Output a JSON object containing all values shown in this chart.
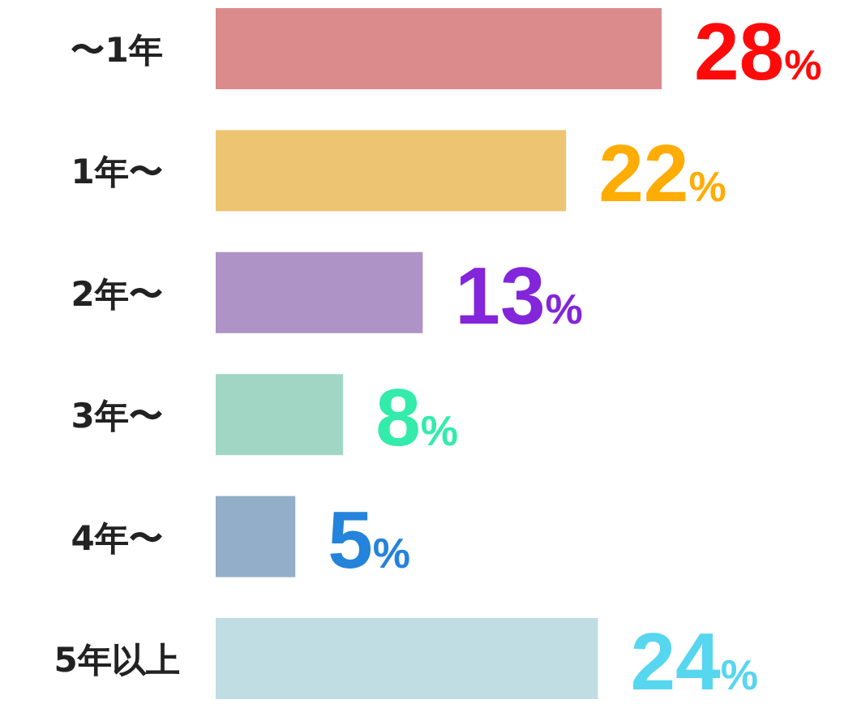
{
  "chart_data": {
    "type": "bar",
    "orientation": "horizontal",
    "categories": [
      "〜1年",
      "1年〜",
      "2年〜",
      "3年〜",
      "4年〜",
      "5年以上"
    ],
    "values": [
      28,
      22,
      13,
      8,
      5,
      24
    ],
    "colors": [
      "#db8b8b",
      "#edc472",
      "#ae93c7",
      "#a2d6c4",
      "#93aec8",
      "#bfdde3"
    ],
    "value_labels": [
      "28%",
      "22%",
      "13%",
      "8%",
      "5%",
      "24%"
    ]
  }
}
